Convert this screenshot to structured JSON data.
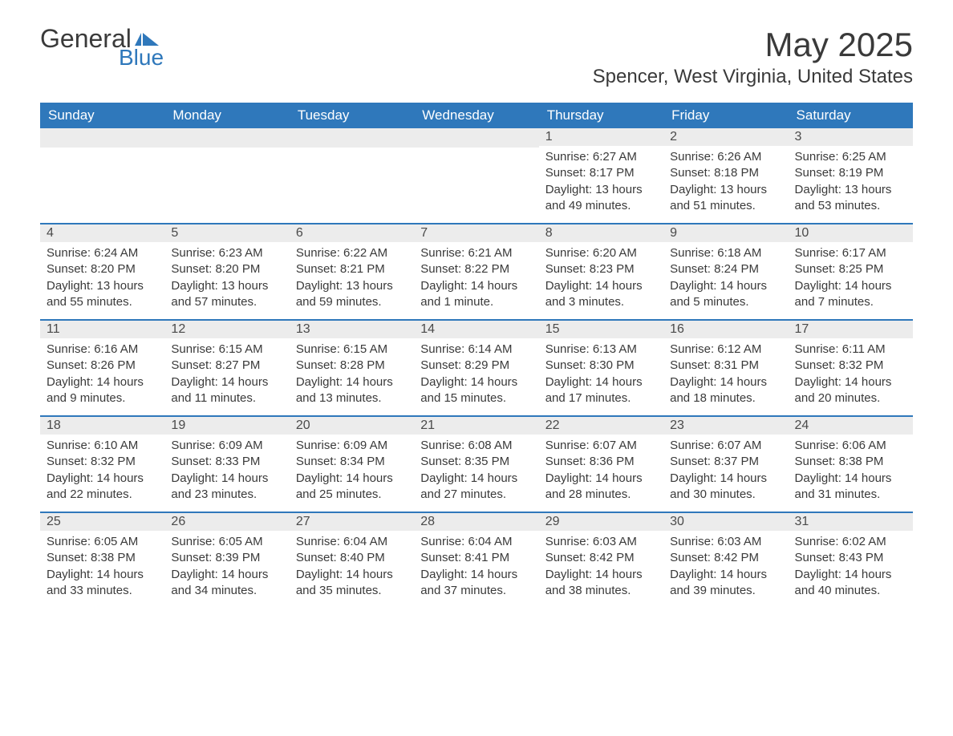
{
  "brand": {
    "part1": "General",
    "part2": "Blue",
    "flag_color": "#2f78bb"
  },
  "title": "May 2025",
  "location": "Spencer, West Virginia, United States",
  "colors": {
    "header_bg": "#2f78bb",
    "daynum_bg": "#ececec",
    "week_border": "#2f78bb",
    "text": "#3a3a3a",
    "bg": "#ffffff"
  },
  "typography": {
    "title_fontsize": 42,
    "location_fontsize": 24,
    "weekday_fontsize": 17,
    "body_fontsize": 15
  },
  "weekdays": [
    "Sunday",
    "Monday",
    "Tuesday",
    "Wednesday",
    "Thursday",
    "Friday",
    "Saturday"
  ],
  "labels": {
    "sunrise": "Sunrise:",
    "sunset": "Sunset:",
    "daylight": "Daylight:"
  },
  "weeks": [
    [
      null,
      null,
      null,
      null,
      {
        "n": "1",
        "sunrise": "6:27 AM",
        "sunset": "8:17 PM",
        "daylight": "13 hours and 49 minutes."
      },
      {
        "n": "2",
        "sunrise": "6:26 AM",
        "sunset": "8:18 PM",
        "daylight": "13 hours and 51 minutes."
      },
      {
        "n": "3",
        "sunrise": "6:25 AM",
        "sunset": "8:19 PM",
        "daylight": "13 hours and 53 minutes."
      }
    ],
    [
      {
        "n": "4",
        "sunrise": "6:24 AM",
        "sunset": "8:20 PM",
        "daylight": "13 hours and 55 minutes."
      },
      {
        "n": "5",
        "sunrise": "6:23 AM",
        "sunset": "8:20 PM",
        "daylight": "13 hours and 57 minutes."
      },
      {
        "n": "6",
        "sunrise": "6:22 AM",
        "sunset": "8:21 PM",
        "daylight": "13 hours and 59 minutes."
      },
      {
        "n": "7",
        "sunrise": "6:21 AM",
        "sunset": "8:22 PM",
        "daylight": "14 hours and 1 minute."
      },
      {
        "n": "8",
        "sunrise": "6:20 AM",
        "sunset": "8:23 PM",
        "daylight": "14 hours and 3 minutes."
      },
      {
        "n": "9",
        "sunrise": "6:18 AM",
        "sunset": "8:24 PM",
        "daylight": "14 hours and 5 minutes."
      },
      {
        "n": "10",
        "sunrise": "6:17 AM",
        "sunset": "8:25 PM",
        "daylight": "14 hours and 7 minutes."
      }
    ],
    [
      {
        "n": "11",
        "sunrise": "6:16 AM",
        "sunset": "8:26 PM",
        "daylight": "14 hours and 9 minutes."
      },
      {
        "n": "12",
        "sunrise": "6:15 AM",
        "sunset": "8:27 PM",
        "daylight": "14 hours and 11 minutes."
      },
      {
        "n": "13",
        "sunrise": "6:15 AM",
        "sunset": "8:28 PM",
        "daylight": "14 hours and 13 minutes."
      },
      {
        "n": "14",
        "sunrise": "6:14 AM",
        "sunset": "8:29 PM",
        "daylight": "14 hours and 15 minutes."
      },
      {
        "n": "15",
        "sunrise": "6:13 AM",
        "sunset": "8:30 PM",
        "daylight": "14 hours and 17 minutes."
      },
      {
        "n": "16",
        "sunrise": "6:12 AM",
        "sunset": "8:31 PM",
        "daylight": "14 hours and 18 minutes."
      },
      {
        "n": "17",
        "sunrise": "6:11 AM",
        "sunset": "8:32 PM",
        "daylight": "14 hours and 20 minutes."
      }
    ],
    [
      {
        "n": "18",
        "sunrise": "6:10 AM",
        "sunset": "8:32 PM",
        "daylight": "14 hours and 22 minutes."
      },
      {
        "n": "19",
        "sunrise": "6:09 AM",
        "sunset": "8:33 PM",
        "daylight": "14 hours and 23 minutes."
      },
      {
        "n": "20",
        "sunrise": "6:09 AM",
        "sunset": "8:34 PM",
        "daylight": "14 hours and 25 minutes."
      },
      {
        "n": "21",
        "sunrise": "6:08 AM",
        "sunset": "8:35 PM",
        "daylight": "14 hours and 27 minutes."
      },
      {
        "n": "22",
        "sunrise": "6:07 AM",
        "sunset": "8:36 PM",
        "daylight": "14 hours and 28 minutes."
      },
      {
        "n": "23",
        "sunrise": "6:07 AM",
        "sunset": "8:37 PM",
        "daylight": "14 hours and 30 minutes."
      },
      {
        "n": "24",
        "sunrise": "6:06 AM",
        "sunset": "8:38 PM",
        "daylight": "14 hours and 31 minutes."
      }
    ],
    [
      {
        "n": "25",
        "sunrise": "6:05 AM",
        "sunset": "8:38 PM",
        "daylight": "14 hours and 33 minutes."
      },
      {
        "n": "26",
        "sunrise": "6:05 AM",
        "sunset": "8:39 PM",
        "daylight": "14 hours and 34 minutes."
      },
      {
        "n": "27",
        "sunrise": "6:04 AM",
        "sunset": "8:40 PM",
        "daylight": "14 hours and 35 minutes."
      },
      {
        "n": "28",
        "sunrise": "6:04 AM",
        "sunset": "8:41 PM",
        "daylight": "14 hours and 37 minutes."
      },
      {
        "n": "29",
        "sunrise": "6:03 AM",
        "sunset": "8:42 PM",
        "daylight": "14 hours and 38 minutes."
      },
      {
        "n": "30",
        "sunrise": "6:03 AM",
        "sunset": "8:42 PM",
        "daylight": "14 hours and 39 minutes."
      },
      {
        "n": "31",
        "sunrise": "6:02 AM",
        "sunset": "8:43 PM",
        "daylight": "14 hours and 40 minutes."
      }
    ]
  ]
}
